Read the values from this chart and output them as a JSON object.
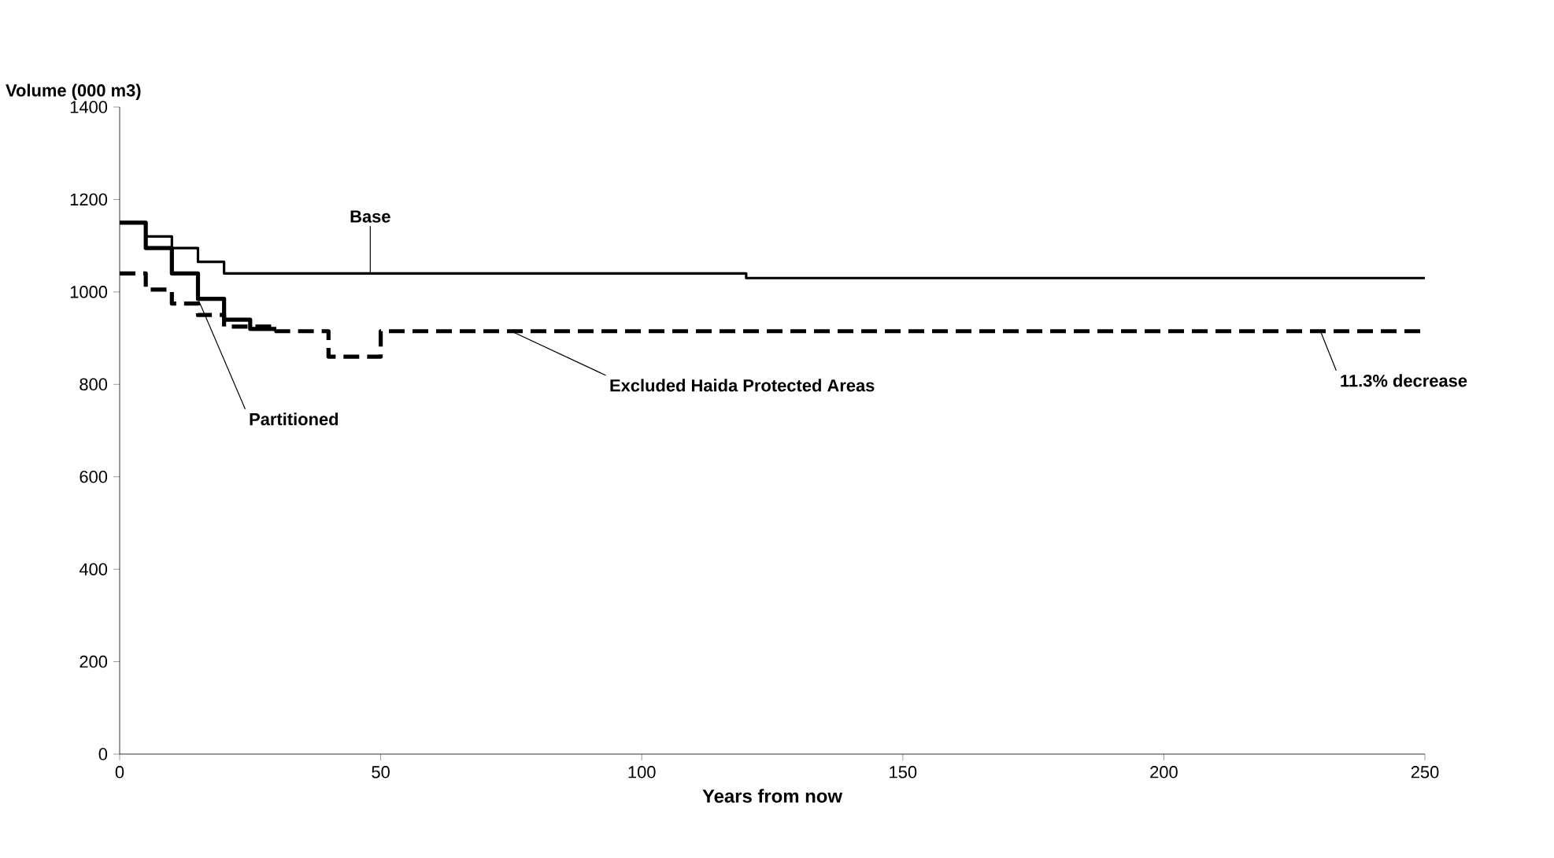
{
  "chart_data": {
    "type": "step",
    "xlabel": "Years from now",
    "ylabel": "Volume (000 m3)",
    "xlim": [
      0,
      250
    ],
    "ylim": [
      0,
      1400
    ],
    "xticks": [
      0,
      50,
      100,
      150,
      200,
      250
    ],
    "yticks": [
      0,
      200,
      400,
      600,
      800,
      1000,
      1200,
      1400
    ],
    "grid": false,
    "legend": false,
    "marker": "none",
    "series": [
      {
        "name": "Base",
        "color": "#000000",
        "line_style": "solid",
        "x": [
          0,
          5,
          10,
          15,
          20,
          120,
          250
        ],
        "values": [
          1150,
          1120,
          1095,
          1065,
          1040,
          1030,
          1030
        ]
      },
      {
        "name": "Partitioned",
        "color": "#000000",
        "line_style": "solid",
        "x": [
          0,
          5,
          10,
          15,
          20,
          25,
          30
        ],
        "values": [
          1150,
          1095,
          1040,
          985,
          940,
          920,
          920
        ]
      },
      {
        "name": "Excluded Haida Protected Areas",
        "color": "#000000",
        "line_style": "dashed",
        "x": [
          0,
          5,
          10,
          15,
          20,
          30,
          40,
          50,
          250
        ],
        "values": [
          1040,
          1005,
          975,
          950,
          925,
          915,
          860,
          915,
          915
        ]
      }
    ],
    "annotations": [
      {
        "text": "11.3% decrease",
        "x": 230,
        "y": 915
      }
    ]
  }
}
